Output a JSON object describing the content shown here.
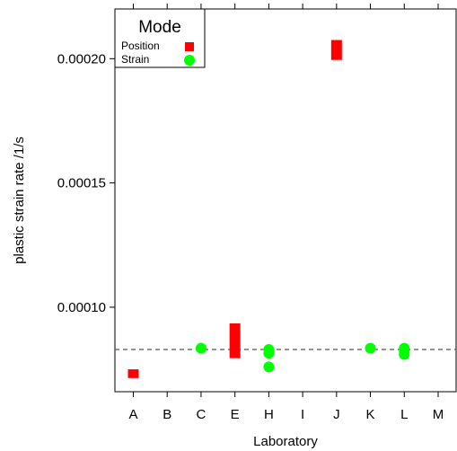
{
  "chart_data": {
    "type": "scatter",
    "xlabel": "Laboratory",
    "ylabel": "plastic strain rate /1/s",
    "categories": [
      "A",
      "B",
      "C",
      "E",
      "H",
      "I",
      "J",
      "K",
      "L",
      "M"
    ],
    "ylim": [
      6.6e-05,
      0.00022
    ],
    "yticks": [
      0.0001,
      0.00015,
      0.0002
    ],
    "ytick_labels": [
      "0.00010",
      "0.00015",
      "0.00020"
    ],
    "reference_line": {
      "value": 8.3e-05,
      "style": "dashed"
    },
    "legend": {
      "title": "Mode",
      "placement": "top-left",
      "entries": [
        {
          "label": "Position",
          "color": "#ff0000",
          "shape": "square"
        },
        {
          "label": "Strain",
          "color": "#00ff00",
          "shape": "circle"
        }
      ]
    },
    "series": [
      {
        "name": "Position",
        "color": "#ff0000",
        "marker": "bar",
        "points": [
          {
            "category": "A",
            "ymin": 7.15e-05,
            "ymax": 7.5e-05
          },
          {
            "category": "E",
            "ymin": 7.95e-05,
            "ymax": 9.35e-05
          },
          {
            "category": "J",
            "ymin": 0.0001995,
            "ymax": 0.0002075
          }
        ]
      },
      {
        "name": "Strain",
        "color": "#00ff00",
        "marker": "circle",
        "points": [
          {
            "category": "C",
            "y": 8.35e-05
          },
          {
            "category": "H",
            "y": 8.3e-05
          },
          {
            "category": "H",
            "y": 8.15e-05
          },
          {
            "category": "H",
            "y": 7.6e-05
          },
          {
            "category": "K",
            "y": 8.35e-05
          },
          {
            "category": "L",
            "y": 8.35e-05
          },
          {
            "category": "L",
            "y": 8.25e-05
          },
          {
            "category": "L",
            "y": 8.1e-05
          }
        ]
      }
    ]
  }
}
